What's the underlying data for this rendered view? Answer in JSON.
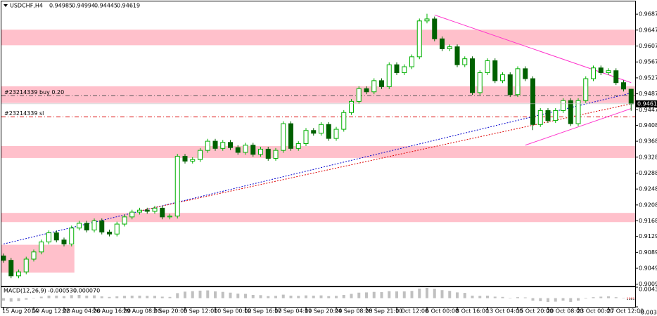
{
  "chart_data": {
    "type": "candlestick",
    "symbol": "USDCHF,H4",
    "categories": [
      "15 Aug 2014",
      null,
      null,
      null,
      "19 Aug 12:00",
      null,
      null,
      null,
      "22 Aug 04:00",
      null,
      null,
      null,
      "26 Aug 16:00",
      null,
      null,
      null,
      "29 Aug 08:00",
      null,
      null,
      null,
      "2 Sep 20:00",
      null,
      null,
      null,
      "5 Sep 12:00",
      null,
      null,
      null,
      "10 Sep 00:00",
      null,
      null,
      null,
      "12 Sep 16:00",
      null,
      null,
      null,
      "17 Sep 04:00",
      null,
      null,
      null,
      "19 Sep 20:00",
      null,
      null,
      null,
      "24 Sep 08:00",
      null,
      null,
      null,
      "28 Sep 21:00",
      null,
      null,
      null,
      "1 Oct 12:00",
      null,
      null,
      null,
      "6 Oct 00:00",
      null,
      null,
      null,
      "8 Oct 16:00",
      null,
      null,
      null,
      "13 Oct 04:00",
      null,
      null,
      null,
      "15 Oct 20:00",
      null,
      null,
      null,
      "20 Oct 08:00",
      null,
      null,
      null,
      "23 Oct 00:00",
      null,
      null,
      null,
      "27 Oct 12:00",
      null,
      null,
      null
    ],
    "open": [
      0.908,
      0.9069,
      0.903,
      0.904,
      0.9072,
      0.909,
      0.9115,
      0.9138,
      0.912,
      0.911,
      0.915,
      0.9162,
      0.9145,
      0.9168,
      0.914,
      0.9135,
      0.916,
      0.9178,
      0.919,
      0.9195,
      0.9192,
      0.92,
      0.9178,
      0.918,
      0.933,
      0.9318,
      0.9322,
      0.9345,
      0.9368,
      0.935,
      0.9365,
      0.9352,
      0.934,
      0.9358,
      0.9335,
      0.9348,
      0.9325,
      0.9345,
      0.9412,
      0.935,
      0.9362,
      0.9395,
      0.9388,
      0.941,
      0.9375,
      0.9398,
      0.944,
      0.9468,
      0.95,
      0.9492,
      0.952,
      0.9505,
      0.956,
      0.954,
      0.9555,
      0.958,
      0.967,
      0.9675,
      0.9625,
      0.96,
      0.9605,
      0.956,
      0.9575,
      0.949,
      0.954,
      0.957,
      0.952,
      0.9535,
      0.9485,
      0.955,
      0.9525,
      0.941,
      0.9445,
      0.942,
      0.9445,
      0.947,
      0.9412,
      0.947,
      0.9525,
      0.9552,
      0.954,
      0.9545,
      0.9515,
      0.94985
    ],
    "high": [
      0.9086,
      0.9075,
      0.9046,
      0.9078,
      0.9096,
      0.9121,
      0.9144,
      0.9144,
      0.9126,
      0.9156,
      0.9168,
      0.9168,
      0.9174,
      0.9174,
      0.9146,
      0.9166,
      0.9184,
      0.9196,
      0.9201,
      0.9201,
      0.9206,
      0.9206,
      0.9186,
      0.9336,
      0.9336,
      0.9328,
      0.9351,
      0.9374,
      0.9374,
      0.9371,
      0.9371,
      0.9358,
      0.9364,
      0.9364,
      0.9354,
      0.9354,
      0.9351,
      0.9418,
      0.9418,
      0.9368,
      0.9401,
      0.9401,
      0.9416,
      0.9416,
      0.9404,
      0.9446,
      0.9474,
      0.9506,
      0.9506,
      0.9526,
      0.9526,
      0.9566,
      0.9566,
      0.9561,
      0.9586,
      0.9676,
      0.9688,
      0.9681,
      0.9631,
      0.9611,
      0.9611,
      0.9581,
      0.9581,
      0.9546,
      0.9576,
      0.9576,
      0.9541,
      0.9541,
      0.9556,
      0.9556,
      0.9531,
      0.9451,
      0.9451,
      0.9451,
      0.9476,
      0.9476,
      0.9476,
      0.9531,
      0.9558,
      0.9558,
      0.9551,
      0.9551,
      0.9521,
      0.94994
    ],
    "low": [
      0.9063,
      0.9024,
      0.9024,
      0.9034,
      0.9066,
      0.9084,
      0.9109,
      0.9114,
      0.9104,
      0.9104,
      0.9144,
      0.9139,
      0.9139,
      0.9134,
      0.9129,
      0.9129,
      0.9154,
      0.9172,
      0.9184,
      0.9186,
      0.9186,
      0.9172,
      0.9172,
      0.9174,
      0.9312,
      0.9312,
      0.9316,
      0.9339,
      0.9344,
      0.9344,
      0.9346,
      0.9334,
      0.9334,
      0.9329,
      0.9329,
      0.9319,
      0.9319,
      0.9339,
      0.9344,
      0.9344,
      0.9356,
      0.9382,
      0.9382,
      0.9369,
      0.9369,
      0.9392,
      0.9434,
      0.9462,
      0.9486,
      0.9486,
      0.9499,
      0.9499,
      0.9534,
      0.9534,
      0.9549,
      0.9574,
      0.9664,
      0.9619,
      0.9594,
      0.9594,
      0.9554,
      0.9554,
      0.9484,
      0.9484,
      0.9534,
      0.9514,
      0.9514,
      0.9479,
      0.9479,
      0.9519,
      0.9396,
      0.9404,
      0.9414,
      0.9414,
      0.9439,
      0.9406,
      0.9406,
      0.9464,
      0.9519,
      0.9534,
      0.9534,
      0.9509,
      0.9493,
      0.94445
    ],
    "close": [
      0.9069,
      0.903,
      0.904,
      0.9072,
      0.909,
      0.9115,
      0.9138,
      0.912,
      0.911,
      0.915,
      0.9162,
      0.9145,
      0.9168,
      0.914,
      0.9135,
      0.916,
      0.9178,
      0.919,
      0.9195,
      0.9192,
      0.92,
      0.9178,
      0.918,
      0.933,
      0.9318,
      0.9322,
      0.9345,
      0.9368,
      0.935,
      0.9365,
      0.9352,
      0.934,
      0.9358,
      0.9335,
      0.9348,
      0.9325,
      0.9345,
      0.9412,
      0.935,
      0.9362,
      0.9395,
      0.9388,
      0.941,
      0.9375,
      0.9398,
      0.944,
      0.9468,
      0.95,
      0.9492,
      0.952,
      0.9505,
      0.956,
      0.954,
      0.9555,
      0.958,
      0.967,
      0.9675,
      0.9625,
      0.96,
      0.9605,
      0.956,
      0.9575,
      0.949,
      0.954,
      0.957,
      0.952,
      0.9535,
      0.9485,
      0.955,
      0.9525,
      0.941,
      0.9445,
      0.942,
      0.9445,
      0.947,
      0.9412,
      0.947,
      0.9525,
      0.9552,
      0.954,
      0.9545,
      0.9515,
      0.9499,
      0.94619
    ],
    "up_color": "#00b000",
    "down_color": "#006000",
    "ylim": [
      0.9005,
      0.9719
    ],
    "yticks": [
      {
        "value": 0.9687,
        "label": "0.96870"
      },
      {
        "value": 0.9647,
        "label": "0.96470"
      },
      {
        "value": 0.9607,
        "label": "0.96070"
      },
      {
        "value": 0.9567,
        "label": "0.95670"
      },
      {
        "value": 0.9527,
        "label": "0.95270"
      },
      {
        "value": 0.9487,
        "label": "0.94870"
      },
      {
        "value": 0.9447,
        "label": "0.94470"
      },
      {
        "value": 0.9408,
        "label": "0.94080"
      },
      {
        "value": 0.9368,
        "label": "0.93680"
      },
      {
        "value": 0.9328,
        "label": "0.93280"
      },
      {
        "value": 0.9288,
        "label": "0.92880"
      },
      {
        "value": 0.9248,
        "label": "0.92480"
      },
      {
        "value": 0.9208,
        "label": "0.92080"
      },
      {
        "value": 0.9168,
        "label": "0.91680"
      },
      {
        "value": 0.9129,
        "label": "0.91290"
      },
      {
        "value": 0.9089,
        "label": "0.90890"
      },
      {
        "value": 0.9049,
        "label": "0.90490"
      },
      {
        "value": 0.9009,
        "label": "0.90090"
      }
    ],
    "zones": [
      {
        "from": 0.9609,
        "to": 0.9648
      },
      {
        "from": 0.9464,
        "to": 0.9506
      },
      {
        "from": 0.9326,
        "to": 0.9356
      },
      {
        "from": 0.9165,
        "to": 0.9188
      },
      {
        "from": 0.9038,
        "to": 0.9108,
        "x": [
          0,
          9
        ]
      }
    ],
    "zone_color": "#ffc0cb",
    "trendlines": [
      {
        "x": [
          0,
          83
        ],
        "y": [
          0.911,
          0.9489
        ],
        "color": "#0000cc",
        "dash": true
      },
      {
        "x": [
          18,
          83
        ],
        "y": [
          0.9193,
          0.9462
        ],
        "color": "#dd0000",
        "dash": true
      },
      {
        "x": [
          57,
          83
        ],
        "y": [
          0.9685,
          0.9515
        ],
        "color": "#ff33cc",
        "dash": false
      },
      {
        "x": [
          69,
          83
        ],
        "y": [
          0.9358,
          0.945
        ],
        "color": "#ff33cc",
        "dash": false
      }
    ],
    "orders": [
      {
        "label": "#23214339 buy 0.20",
        "price": 0.9482,
        "color": "#555555"
      },
      {
        "label": "#23214339 sl",
        "price": 0.9429,
        "color": "#dd0000"
      }
    ],
    "macd": {
      "title": "MACD(12,26,9)",
      "current": [
        {
          "value": -0.00053,
          "label": "-0.000530"
        },
        {
          "value": 7e-05,
          "label": "0.000070"
        }
      ],
      "values": [
        -0.001,
        -0.0014,
        -0.0012,
        -0.0006,
        0.0,
        0.0006,
        0.001,
        0.001,
        0.0008,
        0.0012,
        0.0013,
        0.001,
        0.0011,
        0.0007,
        0.0005,
        0.0007,
        0.0009,
        0.001,
        0.001,
        0.0009,
        0.0009,
        0.0006,
        0.0005,
        0.002,
        0.0026,
        0.0028,
        0.003,
        0.0031,
        0.0027,
        0.0025,
        0.0022,
        0.0018,
        0.0017,
        0.0013,
        0.0012,
        0.0008,
        0.0009,
        0.0014,
        0.001,
        0.0009,
        0.0011,
        0.001,
        0.0011,
        0.0008,
        0.0009,
        0.0013,
        0.0017,
        0.0022,
        0.0023,
        0.0025,
        0.0024,
        0.0028,
        0.0027,
        0.0027,
        0.0029,
        0.0038,
        0.0041,
        0.0037,
        0.0032,
        0.0029,
        0.0023,
        0.0021,
        0.001,
        0.0009,
        0.001,
        0.0006,
        0.0005,
        0.0,
        0.0004,
        0.0003,
        -0.001,
        -0.0012,
        -0.0015,
        -0.0014,
        -0.001,
        -0.0015,
        -0.001,
        -0.0002,
        0.0004,
        0.0006,
        0.0007,
        0.0004,
        0.0001,
        -0.00053
      ],
      "color": "#c0c0c0",
      "ylim": [
        -0.003486,
        0.004374
      ],
      "yticks": [
        0.004374,
        -0.003486
      ]
    }
  }
}
